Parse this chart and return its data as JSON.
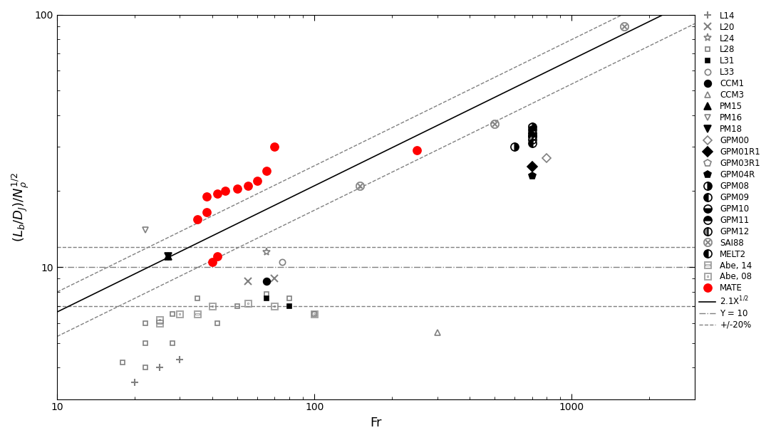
{
  "xlabel": "Fr",
  "ylabel": "$(L_b/D_J)/N_\\rho^{1/2}$",
  "xlim": [
    10,
    3000
  ],
  "ylim": [
    3,
    100
  ],
  "line_coeff": 2.1,
  "simple_series": [
    {
      "label": "L14",
      "marker": "+",
      "color": "#808080",
      "mfc": "none",
      "ms": 7,
      "mew": 1.5,
      "data": [
        [
          25,
          4.0
        ],
        [
          30,
          4.3
        ],
        [
          20,
          3.5
        ]
      ]
    },
    {
      "label": "L20",
      "marker": "x",
      "color": "#808080",
      "mfc": "none",
      "ms": 7,
      "mew": 1.5,
      "data": [
        [
          55,
          8.8
        ],
        [
          70,
          9.0
        ]
      ]
    },
    {
      "label": "L24",
      "marker": "*",
      "color": "#808080",
      "mfc": "none",
      "ms": 8,
      "mew": 1.2,
      "data": [
        [
          65,
          11.5
        ]
      ]
    },
    {
      "label": "L28",
      "marker": "s",
      "color": "#808080",
      "mfc": "none",
      "ms": 5,
      "mew": 1.2,
      "data": [
        [
          22,
          6.0
        ],
        [
          28,
          6.5
        ],
        [
          35,
          7.5
        ],
        [
          42,
          6.0
        ],
        [
          50,
          7.0
        ],
        [
          65,
          7.8
        ],
        [
          80,
          7.5
        ],
        [
          100,
          6.5
        ],
        [
          22,
          5.0
        ],
        [
          28,
          5.0
        ],
        [
          18,
          4.2
        ],
        [
          22,
          4.0
        ]
      ]
    },
    {
      "label": "L31",
      "marker": "s",
      "color": "#000000",
      "mfc": "#000000",
      "ms": 5,
      "mew": 1.2,
      "data": [
        [
          65,
          7.5
        ],
        [
          80,
          7.0
        ]
      ]
    },
    {
      "label": "L33",
      "marker": "o",
      "color": "#808080",
      "mfc": "none",
      "ms": 6,
      "mew": 1.2,
      "data": [
        [
          75,
          10.5
        ]
      ]
    },
    {
      "label": "CCM1",
      "marker": "o",
      "color": "#000000",
      "mfc": "#000000",
      "ms": 7,
      "mew": 1.2,
      "data": [
        [
          65,
          8.8
        ]
      ]
    },
    {
      "label": "CCM3",
      "marker": "^",
      "color": "#808080",
      "mfc": "none",
      "ms": 6,
      "mew": 1.2,
      "data": [
        [
          300,
          5.5
        ]
      ]
    },
    {
      "label": "PM15",
      "marker": "^",
      "color": "#000000",
      "mfc": "#000000",
      "ms": 7,
      "mew": 1.2,
      "data": [
        [
          27,
          11.0
        ]
      ]
    },
    {
      "label": "PM16",
      "marker": "v",
      "color": "#808080",
      "mfc": "none",
      "ms": 6,
      "mew": 1.2,
      "data": [
        [
          22,
          14.0
        ]
      ]
    },
    {
      "label": "PM18",
      "marker": "v",
      "color": "#000000",
      "mfc": "#000000",
      "ms": 7,
      "mew": 1.2,
      "data": [
        [
          27,
          11.0
        ]
      ]
    },
    {
      "label": "GPM00",
      "marker": "D",
      "color": "#808080",
      "mfc": "none",
      "ms": 6,
      "mew": 1.2,
      "data": [
        [
          800,
          27.0
        ]
      ]
    },
    {
      "label": "GPM01R1",
      "marker": "D",
      "color": "#000000",
      "mfc": "#000000",
      "ms": 7,
      "mew": 1.2,
      "data": [
        [
          700,
          25.0
        ]
      ]
    },
    {
      "label": "GPM03R1",
      "marker": "p",
      "color": "#808080",
      "mfc": "none",
      "ms": 7,
      "mew": 1.2,
      "data": [
        [
          700,
          36.0
        ],
        [
          700,
          34.0
        ]
      ]
    },
    {
      "label": "GPM04R",
      "marker": "p",
      "color": "#000000",
      "mfc": "#000000",
      "ms": 7,
      "mew": 1.2,
      "data": [
        [
          700,
          23.0
        ]
      ]
    },
    {
      "label": "MATE",
      "marker": "o",
      "color": "#ff0000",
      "mfc": "#ff0000",
      "ms": 8,
      "mew": 1.2,
      "data": [
        [
          35,
          15.5
        ],
        [
          38,
          16.5
        ],
        [
          38,
          19.0
        ],
        [
          42,
          19.5
        ],
        [
          45,
          20.0
        ],
        [
          50,
          20.5
        ],
        [
          55,
          21.0
        ],
        [
          60,
          22.0
        ],
        [
          65,
          24.0
        ],
        [
          70,
          30.0
        ],
        [
          250,
          29.0
        ],
        [
          40,
          10.5
        ],
        [
          42,
          11.0
        ]
      ]
    }
  ],
  "gpm08_data": [
    [
      600,
      30.0
    ],
    [
      700,
      36.0
    ]
  ],
  "gpm09_data": [
    [
      700,
      35.0
    ],
    [
      700,
      33.0
    ]
  ],
  "gpm10_data": [
    [
      700,
      34.0
    ]
  ],
  "gpm11_data": [
    [
      700,
      33.0
    ]
  ],
  "gpm12_data": [
    [
      700,
      32.0
    ]
  ],
  "melt2_data": [
    [
      700,
      31.0
    ]
  ],
  "sai88_data": [
    [
      150,
      21.0
    ],
    [
      500,
      37.0
    ],
    [
      1600,
      90.0
    ]
  ],
  "abe14_data": [
    [
      25,
      6.0
    ],
    [
      35,
      6.5
    ]
  ],
  "abe08_data": [
    [
      25,
      6.2
    ],
    [
      30,
      6.5
    ],
    [
      40,
      7.0
    ],
    [
      55,
      7.2
    ],
    [
      70,
      7.0
    ],
    [
      100,
      6.5
    ]
  ]
}
